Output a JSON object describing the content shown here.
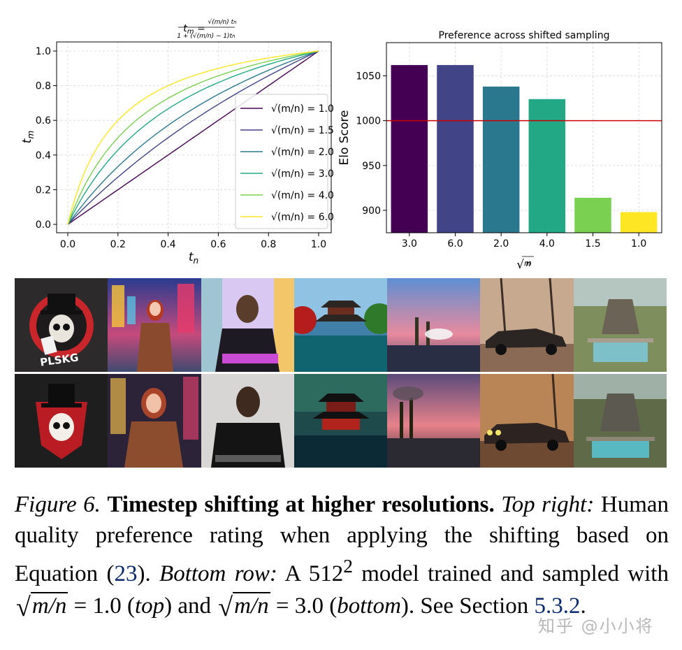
{
  "chart_data": [
    {
      "type": "line",
      "title": "t_m = (sqrt(m/n) t_n) / (1 + (sqrt(m/n) - 1) t_n)",
      "xlabel": "t_n",
      "ylabel": "t_m",
      "xlim": [
        0.0,
        1.0
      ],
      "ylim": [
        0.0,
        1.0
      ],
      "xticks": [
        "0.0",
        "0.2",
        "0.4",
        "0.6",
        "0.8",
        "1.0"
      ],
      "yticks": [
        "0.0",
        "0.2",
        "0.4",
        "0.6",
        "0.8",
        "1.0"
      ],
      "grid": true,
      "legend_position": "lower-right",
      "series": [
        {
          "name": "√(m/n) = 1.0",
          "shift": 1.0,
          "color": "#440154"
        },
        {
          "name": "√(m/n) = 1.5",
          "shift": 1.5,
          "color": "#414487"
        },
        {
          "name": "√(m/n) = 2.0",
          "shift": 2.0,
          "color": "#2a788e"
        },
        {
          "name": "√(m/n) = 3.0",
          "shift": 3.0,
          "color": "#22a884"
        },
        {
          "name": "√(m/n) = 4.0",
          "shift": 4.0,
          "color": "#7ad151"
        },
        {
          "name": "√(m/n) = 6.0",
          "shift": 6.0,
          "color": "#fde725"
        }
      ]
    },
    {
      "type": "bar",
      "title": "Preference across shifted sampling",
      "xlabel": "√(m/n)",
      "ylabel": "Elo Score",
      "categories": [
        "3.0",
        "6.0",
        "2.0",
        "4.0",
        "1.5",
        "1.0"
      ],
      "values": [
        1062,
        1062,
        1038,
        1024,
        914,
        898
      ],
      "colors": [
        "#440154",
        "#414487",
        "#2a788e",
        "#22a884",
        "#7ad151",
        "#fde725"
      ],
      "ylim": [
        875,
        1087
      ],
      "yticks": [
        "900",
        "950",
        "1000",
        "1050"
      ],
      "reference_line": {
        "value": 1000,
        "color": "#cc0000"
      },
      "grid": true
    }
  ],
  "figure": {
    "image_rows": [
      {
        "row": "top",
        "images": [
          "skull-logo-image",
          "woman-times-square-image",
          "man-leather-jacket-image",
          "pagoda-garden-image",
          "factory-sunset-image",
          "vintage-car-image",
          "jungle-temple-image"
        ]
      },
      {
        "row": "bottom",
        "images": [
          "skull-logo-image",
          "woman-times-square-image",
          "man-leather-jacket-image",
          "pagoda-garden-image",
          "factory-sunset-image",
          "vintage-car-image",
          "jungle-temple-image"
        ]
      }
    ],
    "logo_text": "PLSKG"
  },
  "caption": {
    "label": "Figure 6.",
    "title": "Timestep shifting at higher resolutions.",
    "top_right_label": "Top right:",
    "text1": " Human quality preference rating when applying the shifting based on Equation (",
    "eq_ref": "23",
    "text2": "). ",
    "bottom_row_label": "Bottom row:",
    "text3": " A ",
    "res": "512",
    "sup": "2",
    "text4": " model trained and sampled with ",
    "sqrt_expr": "m/n",
    "eq1": " = 1.0 (",
    "top_word": "top",
    "text5": ") and ",
    "eq2": " = 3.0 (",
    "bottom_word": "bottom",
    "text6": "). See Section ",
    "section_ref": "5.3.2",
    "text7": "."
  },
  "watermark": "知乎 @小小将"
}
